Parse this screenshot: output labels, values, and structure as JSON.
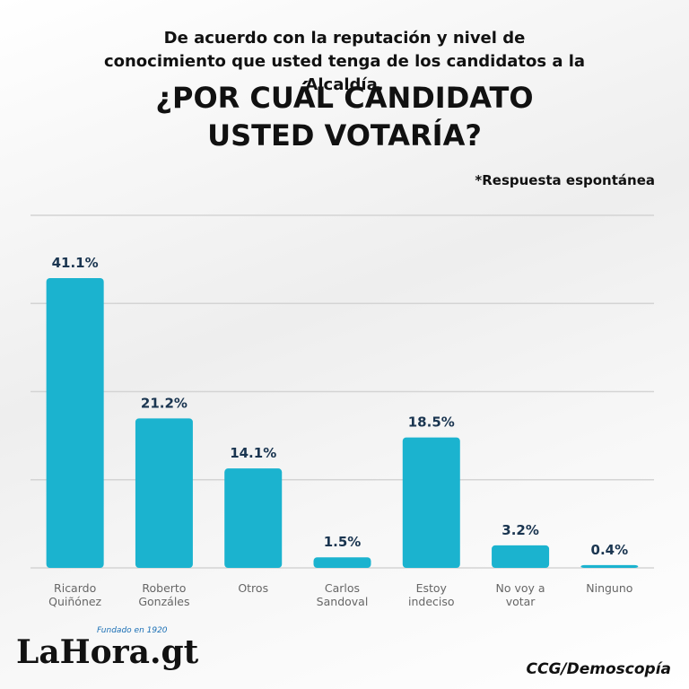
{
  "chart_data": {
    "type": "bar",
    "subtitle": "De acuerdo con la reputación y nivel de conocimiento que usted tenga de los candidatos a la Alcaldía,",
    "title": "¿POR CUÁL CANDIDATO USTED VOTARÍA?",
    "note": "*Respuesta espontánea",
    "categories": [
      "Ricardo Quiñónez",
      "Roberto Gonzáles",
      "Otros",
      "Carlos Sandoval",
      "Estoy indeciso",
      "No voy a votar",
      "Ninguno"
    ],
    "values": [
      41.1,
      21.2,
      14.1,
      1.5,
      18.5,
      3.2,
      0.4
    ],
    "value_labels": [
      "41.1%",
      "21.2%",
      "14.1%",
      "1.5%",
      "18.5%",
      "3.2%",
      "0.4%"
    ],
    "color": "#1bb3cf",
    "ylim": [
      0,
      50
    ],
    "yticks": [
      0,
      12.5,
      25,
      37.5,
      50
    ],
    "grid": true,
    "source": "CCG/Demoscopía"
  },
  "logo": {
    "name": "LaHora.gt",
    "tagline": "Fundado en 1920"
  }
}
